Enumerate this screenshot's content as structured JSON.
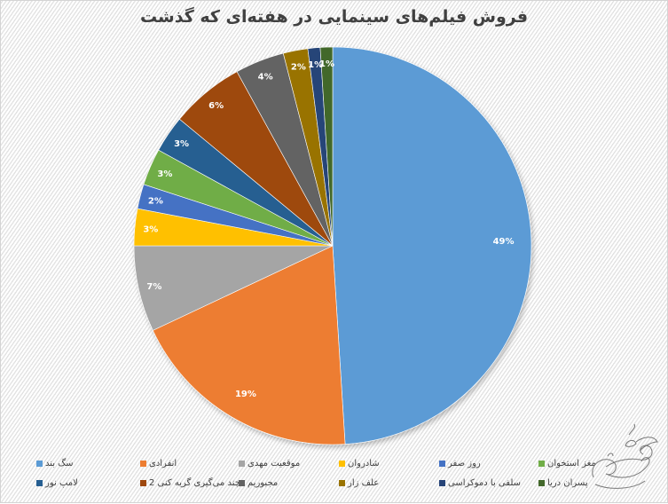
{
  "title": "فروش فیلم‌های سینمایی در هفته‌ای که گذشت",
  "chart_data": {
    "type": "pie",
    "title": "فروش فیلم‌های سینمایی در هفته‌ای که گذشت",
    "start_angle_deg": 0,
    "direction": "clockwise",
    "labels": [
      "سگ بند",
      "انفرادی",
      "موقعیت مهدی",
      "شادروان",
      "روز صفر",
      "مغز استخوان",
      "لامپ نور",
      "چند می‌گیری گریه کنی 2",
      "مجبوریم",
      "علف زار",
      "سلفی با دموکراسی",
      "پسران دریا"
    ],
    "values": [
      49,
      19,
      7,
      3,
      2,
      3,
      3,
      6,
      4,
      2,
      1,
      1
    ],
    "value_labels": [
      "49%",
      "19%",
      "7%",
      "3%",
      "2%",
      "3%",
      "3%",
      "6%",
      "4%",
      "2%",
      "1%",
      "1%"
    ],
    "colors": [
      "#5B9BD5",
      "#ED7D31",
      "#A5A5A5",
      "#FFC000",
      "#4472C4",
      "#70AD47",
      "#255E91",
      "#9E480E",
      "#636363",
      "#997300",
      "#264478",
      "#43682B"
    ],
    "legend_position": "bottom",
    "data_labels": "percentage"
  },
  "legend": {
    "items": [
      {
        "label": "سگ بند",
        "color": "#5B9BD5"
      },
      {
        "label": "انفرادی",
        "color": "#ED7D31"
      },
      {
        "label": "موقعیت مهدی",
        "color": "#A5A5A5"
      },
      {
        "label": "شادروان",
        "color": "#FFC000"
      },
      {
        "label": "روز صفر",
        "color": "#4472C4"
      },
      {
        "label": "مغز استخوان",
        "color": "#70AD47"
      },
      {
        "label": "لامپ نور",
        "color": "#255E91"
      },
      {
        "label": "چند می‌گیری گریه کنی 2",
        "color": "#9E480E"
      },
      {
        "label": "مجبوریم",
        "color": "#636363"
      },
      {
        "label": "علف زار",
        "color": "#997300"
      },
      {
        "label": "سلفی با دموکراسی",
        "color": "#264478"
      },
      {
        "label": "پسران دریا",
        "color": "#43682B"
      }
    ]
  }
}
